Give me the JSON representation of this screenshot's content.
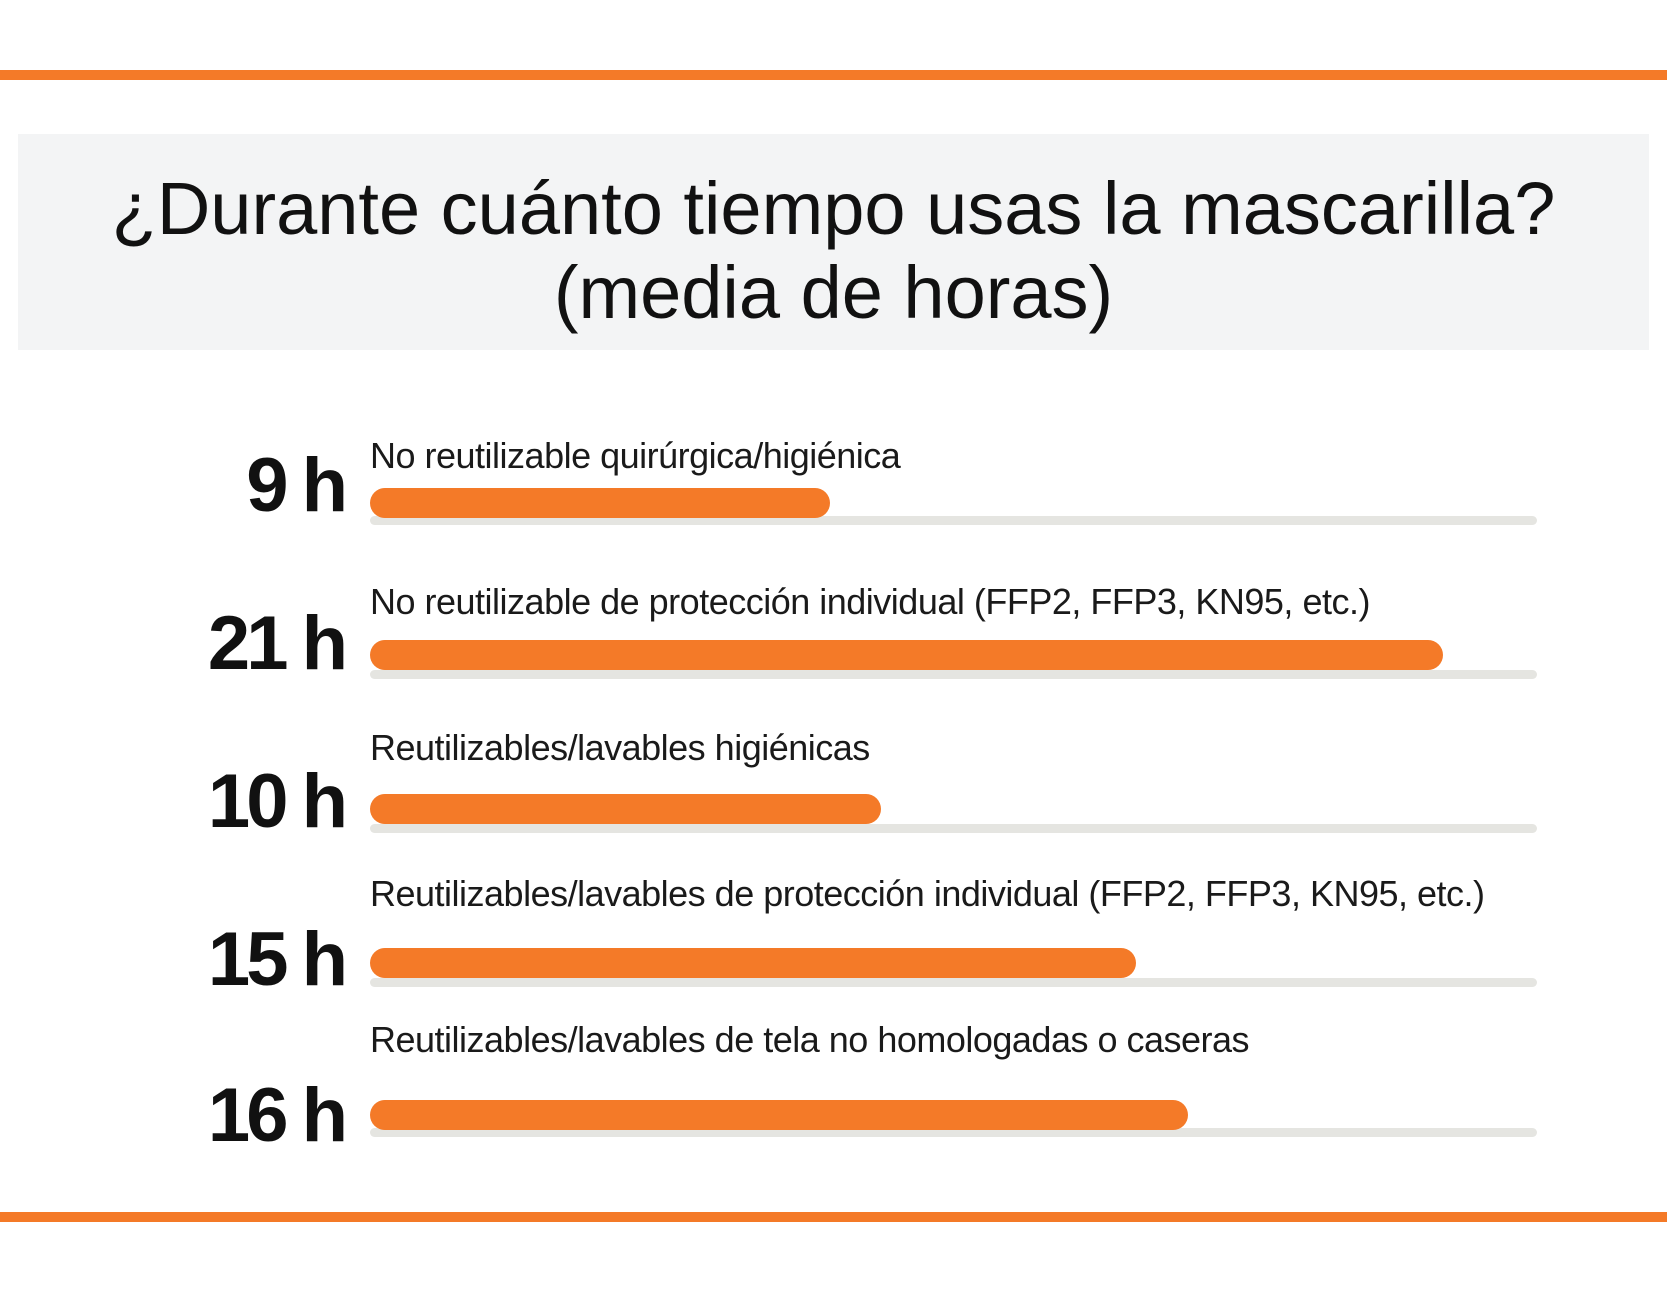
{
  "header": {
    "title_line1": "¿Durante cuánto tiempo usas la mascarilla?",
    "title_line2": "(media de horas)"
  },
  "colors": {
    "accent": "#f47a28",
    "track": "#e5e5e1",
    "title_bg": "#f3f4f5",
    "text": "#111111"
  },
  "chart_data": {
    "type": "bar",
    "orientation": "horizontal",
    "title": "¿Durante cuánto tiempo usas la mascarilla? (media de horas)",
    "unit": "h",
    "xlim": [
      0,
      24
    ],
    "categories": [
      "No reutilizable quirúrgica/higiénica",
      "No reutilizable de protección individual (FFP2, FFP3, KN95, etc.)",
      "Reutilizables/lavables higiénicas",
      "Reutilizables/lavables de protección individual (FFP2, FFP3, KN95, etc.)",
      "Reutilizables/lavables de tela no homologadas o caseras"
    ],
    "values": [
      9,
      21,
      10,
      15,
      16
    ],
    "value_labels": [
      "9 h",
      "21 h",
      "10 h",
      "15 h",
      "16 h"
    ]
  }
}
